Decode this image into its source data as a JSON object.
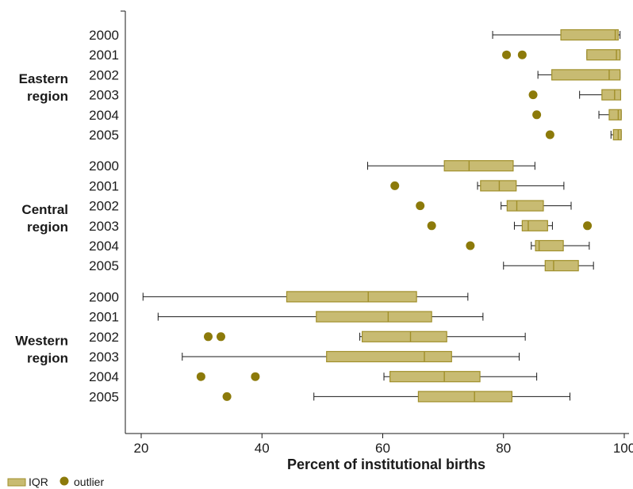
{
  "colors": {
    "box_fill": "#c8bb72",
    "box_stroke": "#a08f2a",
    "outlier": "#8c7a0a",
    "axis": "#1a1a1a"
  },
  "chart_data": {
    "type": "boxplot",
    "orientation": "horizontal",
    "xlabel": "Percent of institutional births",
    "xlim": [
      18,
      100
    ],
    "xticks": [
      20,
      40,
      60,
      80,
      100
    ],
    "legend": {
      "placement": "bottom-left",
      "iqr_label": "IQR",
      "outlier_label": "outlier"
    },
    "groups": [
      {
        "region": "Eastern region",
        "region_lines": [
          "Eastern",
          "region"
        ],
        "rows": [
          {
            "year": "2000",
            "whisker_low": 78.2,
            "q1": 89.5,
            "median": 98.5,
            "q3": 99.0,
            "whisker_high": 99.3,
            "outliers": []
          },
          {
            "year": "2001",
            "whisker_low": 93.8,
            "q1": 93.8,
            "median": 98.7,
            "q3": 99.3,
            "whisker_high": 99.3,
            "outliers": [
              80.5,
              83.1
            ]
          },
          {
            "year": "2002",
            "whisker_low": 85.7,
            "q1": 88.0,
            "median": 97.5,
            "q3": 99.3,
            "whisker_high": 99.3,
            "outliers": []
          },
          {
            "year": "2003",
            "whisker_low": 92.6,
            "q1": 96.3,
            "median": 98.4,
            "q3": 99.4,
            "whisker_high": 99.4,
            "outliers": [
              84.9
            ]
          },
          {
            "year": "2004",
            "whisker_low": 95.8,
            "q1": 97.5,
            "median": 99.0,
            "q3": 99.5,
            "whisker_high": 99.5,
            "outliers": [
              85.5
            ]
          },
          {
            "year": "2005",
            "whisker_low": 97.8,
            "q1": 98.2,
            "median": 99.0,
            "q3": 99.5,
            "whisker_high": 99.5,
            "outliers": [
              87.7
            ]
          }
        ]
      },
      {
        "region": "Central region",
        "region_lines": [
          "Central",
          "region"
        ],
        "rows": [
          {
            "year": "2000",
            "whisker_low": 57.5,
            "q1": 70.2,
            "median": 74.3,
            "q3": 81.6,
            "whisker_high": 85.2,
            "outliers": []
          },
          {
            "year": "2001",
            "whisker_low": 75.7,
            "q1": 76.2,
            "median": 79.3,
            "q3": 82.1,
            "whisker_high": 90.0,
            "outliers": [
              62.0
            ]
          },
          {
            "year": "2002",
            "whisker_low": 79.6,
            "q1": 80.6,
            "median": 82.2,
            "q3": 86.6,
            "whisker_high": 91.2,
            "outliers": [
              66.2
            ]
          },
          {
            "year": "2003",
            "whisker_low": 81.8,
            "q1": 83.1,
            "median": 84.1,
            "q3": 87.3,
            "whisker_high": 88.1,
            "outliers": [
              68.1,
              93.9
            ]
          },
          {
            "year": "2004",
            "whisker_low": 84.6,
            "q1": 85.3,
            "median": 85.9,
            "q3": 89.9,
            "whisker_high": 94.2,
            "outliers": [
              74.5
            ]
          },
          {
            "year": "2005",
            "whisker_low": 80.0,
            "q1": 86.9,
            "median": 88.3,
            "q3": 92.4,
            "whisker_high": 94.9,
            "outliers": []
          }
        ]
      },
      {
        "region": "Western region",
        "region_lines": [
          "Western",
          "region"
        ],
        "rows": [
          {
            "year": "2000",
            "whisker_low": 20.3,
            "q1": 44.1,
            "median": 57.6,
            "q3": 65.6,
            "whisker_high": 74.1,
            "outliers": []
          },
          {
            "year": "2001",
            "whisker_low": 22.8,
            "q1": 49.0,
            "median": 60.9,
            "q3": 68.1,
            "whisker_high": 76.6,
            "outliers": []
          },
          {
            "year": "2002",
            "whisker_low": 56.2,
            "q1": 56.6,
            "median": 64.6,
            "q3": 70.6,
            "whisker_high": 83.6,
            "outliers": [
              31.1,
              33.2
            ]
          },
          {
            "year": "2003",
            "whisker_low": 26.8,
            "q1": 50.7,
            "median": 66.9,
            "q3": 71.4,
            "whisker_high": 82.6,
            "outliers": []
          },
          {
            "year": "2004",
            "whisker_low": 60.2,
            "q1": 61.2,
            "median": 70.2,
            "q3": 76.1,
            "whisker_high": 85.5,
            "outliers": [
              29.9,
              38.9
            ]
          },
          {
            "year": "2005",
            "whisker_low": 48.6,
            "q1": 65.9,
            "median": 75.2,
            "q3": 81.4,
            "whisker_high": 91.0,
            "outliers": [
              34.2
            ]
          }
        ]
      }
    ]
  }
}
